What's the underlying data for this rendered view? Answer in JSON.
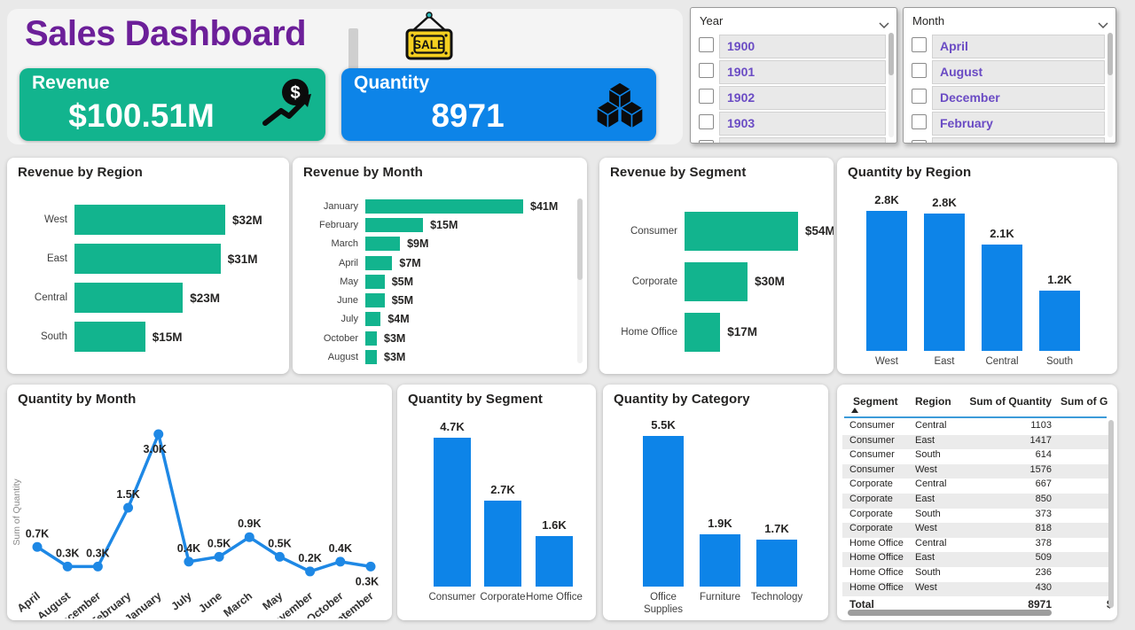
{
  "colors": {
    "teal": "#12B48E",
    "blue": "#0D84E8",
    "title_purple": "#6C1F99",
    "slicer_purple": "#6A4BC4",
    "line_blue": "#1E88E5",
    "background": "#e9e9e9",
    "table_header_underline": "#3C9BD9"
  },
  "header": {
    "title": "Sales Dashboard",
    "sale_sign_text": "SALE",
    "kpis": [
      {
        "label": "Revenue",
        "value": "$100.51M",
        "icon": "money-growth-icon",
        "color": "#12B48E"
      },
      {
        "label": "Quantity",
        "value": "8971",
        "icon": "cubes-icon",
        "color": "#0D84E8"
      }
    ]
  },
  "slicers": [
    {
      "title": "Year",
      "items": [
        "1900",
        "1901",
        "1902",
        "1903"
      ]
    },
    {
      "title": "Month",
      "items": [
        "April",
        "August",
        "December",
        "February"
      ]
    }
  ],
  "chart_data": [
    {
      "id": "revenue-by-region",
      "type": "bar",
      "orientation": "horizontal",
      "title": "Revenue by Region",
      "categories": [
        "West",
        "East",
        "Central",
        "South"
      ],
      "values": [
        32,
        31,
        23,
        15
      ],
      "data_labels": [
        "$32M",
        "$31M",
        "$23M",
        "$15M"
      ],
      "unit": "M USD",
      "bar_color": "#12B48E"
    },
    {
      "id": "revenue-by-month",
      "type": "bar",
      "orientation": "horizontal",
      "title": "Revenue by Month",
      "categories": [
        "January",
        "February",
        "March",
        "April",
        "May",
        "June",
        "July",
        "October",
        "August"
      ],
      "values": [
        41,
        15,
        9,
        7,
        5,
        5,
        4,
        3,
        3
      ],
      "data_labels": [
        "$41M",
        "$15M",
        "$9M",
        "$7M",
        "$5M",
        "$5M",
        "$4M",
        "$3M",
        "$3M"
      ],
      "unit": "M USD",
      "bar_color": "#12B48E",
      "scrollbar": true
    },
    {
      "id": "revenue-by-segment",
      "type": "bar",
      "orientation": "horizontal",
      "title": "Revenue by Segment",
      "categories": [
        "Consumer",
        "Corporate",
        "Home Office"
      ],
      "values": [
        54,
        30,
        17
      ],
      "data_labels": [
        "$54M",
        "$30M",
        "$17M"
      ],
      "unit": "M USD",
      "bar_color": "#12B48E"
    },
    {
      "id": "quantity-by-region",
      "type": "bar",
      "orientation": "vertical",
      "title": "Quantity by Region",
      "categories": [
        "West",
        "East",
        "Central",
        "South"
      ],
      "values": [
        2824,
        2776,
        2148,
        1223
      ],
      "data_labels": [
        "2.8K",
        "2.8K",
        "2.1K",
        "1.2K"
      ],
      "bar_color": "#0D84E8"
    },
    {
      "id": "quantity-by-month",
      "type": "line",
      "title": "Quantity by Month",
      "ylabel": "Sum of Quantity",
      "categories": [
        "April",
        "August",
        "December",
        "February",
        "January",
        "July",
        "June",
        "March",
        "May",
        "November",
        "October",
        "September"
      ],
      "values": [
        700,
        300,
        300,
        1500,
        3000,
        400,
        500,
        900,
        500,
        200,
        400,
        300
      ],
      "data_labels": [
        "0.7K",
        "0.3K",
        "0.3K",
        "1.5K",
        "3.0K",
        "0.4K",
        "0.5K",
        "0.9K",
        "0.5K",
        "0.2K",
        "0.4K",
        "0.3K"
      ],
      "label_below_indexes": [
        4,
        11
      ],
      "line_color": "#1E88E5",
      "ylim": [
        0,
        3000
      ]
    },
    {
      "id": "quantity-by-segment",
      "type": "bar",
      "orientation": "vertical",
      "title": "Quantity by Segment",
      "categories": [
        "Consumer",
        "Corporate",
        "Home Office"
      ],
      "values": [
        4700,
        2700,
        1600
      ],
      "data_labels": [
        "4.7K",
        "2.7K",
        "1.6K"
      ],
      "bar_color": "#0D84E8"
    },
    {
      "id": "quantity-by-category",
      "type": "bar",
      "orientation": "vertical",
      "title": "Quantity by Category",
      "categories": [
        "Office Supplies",
        "Furniture",
        "Technology"
      ],
      "values": [
        5500,
        1900,
        1700
      ],
      "data_labels": [
        "5.5K",
        "1.9K",
        "1.7K"
      ],
      "bar_color": "#0D84E8"
    }
  ],
  "table": {
    "headers": [
      "Segment",
      "Region",
      "Sum of Quantity",
      "Sum of G"
    ],
    "sorted_by": "Segment",
    "sort_direction": "ascending",
    "rows": [
      [
        "Consumer",
        "Central",
        "1103"
      ],
      [
        "Consumer",
        "East",
        "1417"
      ],
      [
        "Consumer",
        "South",
        "614"
      ],
      [
        "Consumer",
        "West",
        "1576"
      ],
      [
        "Corporate",
        "Central",
        "667"
      ],
      [
        "Corporate",
        "East",
        "850"
      ],
      [
        "Corporate",
        "South",
        "373"
      ],
      [
        "Corporate",
        "West",
        "818"
      ],
      [
        "Home Office",
        "Central",
        "378"
      ],
      [
        "Home Office",
        "East",
        "509"
      ],
      [
        "Home Office",
        "South",
        "236"
      ],
      [
        "Home Office",
        "West",
        "430"
      ]
    ],
    "total": {
      "label": "Total",
      "quantity": "8971",
      "extra": "$"
    }
  }
}
